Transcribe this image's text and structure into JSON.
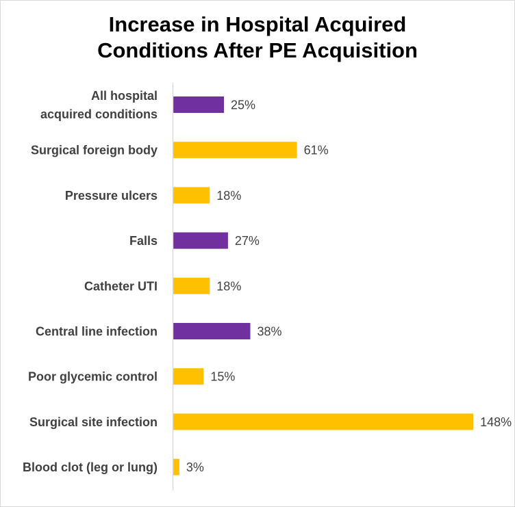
{
  "chart_data": {
    "type": "bar",
    "orientation": "horizontal",
    "title": [
      "Increase  in Hospital  Acquired",
      "Conditions After PE Acquisition"
    ],
    "xlabel": "",
    "ylabel": "",
    "categories": [
      "All hospital acquired conditions",
      "Surgical foreign body",
      "Pressure ulcers",
      "Falls",
      "Catheter UTI",
      "Central line infection",
      "Poor glycemic control",
      "Surgical site infection",
      "Blood clot (leg or lung)"
    ],
    "category_label_lines": [
      [
        "All hospital",
        "acquired conditions"
      ],
      [
        "Surgical foreign body"
      ],
      [
        "Pressure ulcers"
      ],
      [
        "Falls"
      ],
      [
        "Catheter UTI"
      ],
      [
        "Central line infection"
      ],
      [
        "Poor glycemic control"
      ],
      [
        "Surgical site infection"
      ],
      [
        "Blood clot (leg or lung)"
      ]
    ],
    "values": [
      25,
      61,
      18,
      27,
      18,
      38,
      15,
      148,
      3
    ],
    "value_labels": [
      "25%",
      "61%",
      "18%",
      "27%",
      "18%",
      "38%",
      "15%",
      "148%",
      "3%"
    ],
    "bar_colors": [
      "#7030a0",
      "#ffc000",
      "#ffc000",
      "#7030a0",
      "#ffc000",
      "#7030a0",
      "#ffc000",
      "#ffc000",
      "#ffc000"
    ],
    "xlim": [
      0,
      150
    ],
    "grid": false,
    "legend": "none",
    "axis_color": "#d9d9d9"
  }
}
